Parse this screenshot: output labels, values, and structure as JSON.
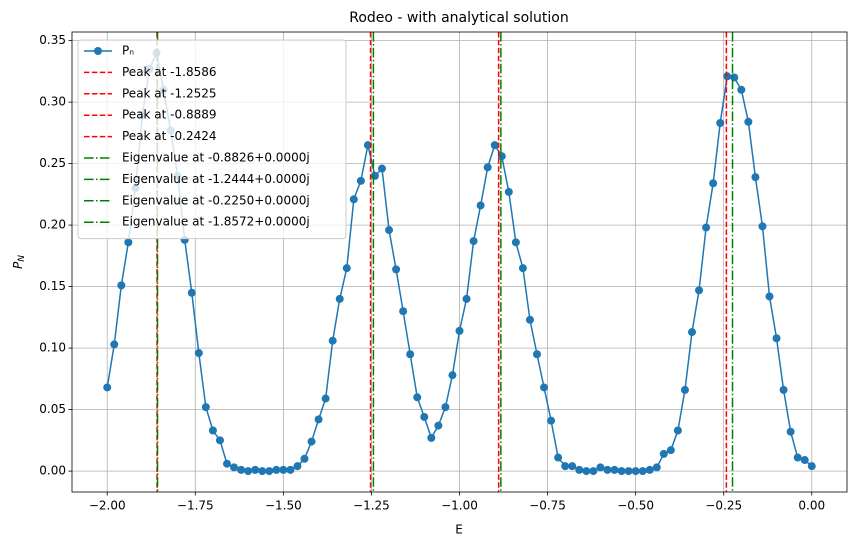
{
  "chart_data": {
    "type": "line",
    "title": "Rodeo - with analytical solution",
    "xlabel": "E",
    "ylabel": {
      "base": "P",
      "subscript": "N"
    },
    "xlim": [
      -2.1,
      0.1
    ],
    "ylim": [
      -0.017,
      0.357
    ],
    "xticks": [
      {
        "value": -2,
        "label": "−2.00"
      },
      {
        "value": -1.75,
        "label": "−1.75"
      },
      {
        "value": -1.5,
        "label": "−1.50"
      },
      {
        "value": -1.25,
        "label": "−1.25"
      },
      {
        "value": -1,
        "label": "−1.00"
      },
      {
        "value": -0.75,
        "label": "−0.75"
      },
      {
        "value": -0.5,
        "label": "−0.50"
      },
      {
        "value": -0.25,
        "label": "−0.25"
      },
      {
        "value": 0,
        "label": "0.00"
      }
    ],
    "yticks": [
      {
        "value": 0,
        "label": "0.00"
      },
      {
        "value": 0.05,
        "label": "0.05"
      },
      {
        "value": 0.1,
        "label": "0.10"
      },
      {
        "value": 0.15,
        "label": "0.15"
      },
      {
        "value": 0.2,
        "label": "0.20"
      },
      {
        "value": 0.25,
        "label": "0.25"
      },
      {
        "value": 0.3,
        "label": "0.30"
      },
      {
        "value": 0.35,
        "label": "0.35"
      }
    ],
    "grid": true,
    "legend": "upper left",
    "x": [
      -2.0,
      -1.98,
      -1.96,
      -1.94,
      -1.92,
      -1.9,
      -1.88,
      -1.86,
      -1.84,
      -1.82,
      -1.8,
      -1.78,
      -1.76,
      -1.74,
      -1.72,
      -1.7,
      -1.68,
      -1.66,
      -1.64,
      -1.62,
      -1.6,
      -1.58,
      -1.56,
      -1.54,
      -1.52,
      -1.5,
      -1.48,
      -1.46,
      -1.44,
      -1.42,
      -1.4,
      -1.38,
      -1.36,
      -1.34,
      -1.32,
      -1.3,
      -1.28,
      -1.26,
      -1.24,
      -1.22,
      -1.2,
      -1.18,
      -1.16,
      -1.14,
      -1.12,
      -1.1,
      -1.08,
      -1.06,
      -1.04,
      -1.02,
      -1.0,
      -0.98,
      -0.96,
      -0.94,
      -0.92,
      -0.9,
      -0.88,
      -0.86,
      -0.84,
      -0.82,
      -0.8,
      -0.78,
      -0.76,
      -0.74,
      -0.72,
      -0.7,
      -0.68,
      -0.66,
      -0.64,
      -0.62,
      -0.6,
      -0.58,
      -0.56,
      -0.54,
      -0.52,
      -0.5,
      -0.48,
      -0.46,
      -0.44,
      -0.42,
      -0.4,
      -0.38,
      -0.36,
      -0.34,
      -0.32,
      -0.3,
      -0.28,
      -0.26,
      -0.24,
      -0.22,
      -0.2,
      -0.18,
      -0.16,
      -0.14,
      -0.12,
      -0.1,
      -0.08,
      -0.06,
      -0.04,
      -0.02,
      0.0
    ],
    "series": [
      {
        "name": "Pₙ",
        "color": "#1f77b4",
        "marker": "o",
        "values": [
          0.068,
          0.103,
          0.151,
          0.186,
          0.23,
          0.29,
          0.327,
          0.34,
          0.31,
          0.277,
          0.24,
          0.188,
          0.145,
          0.096,
          0.052,
          0.033,
          0.025,
          0.006,
          0.003,
          0.001,
          0.0,
          0.001,
          0.0,
          0.0,
          0.001,
          0.001,
          0.001,
          0.004,
          0.01,
          0.024,
          0.042,
          0.059,
          0.106,
          0.14,
          0.165,
          0.221,
          0.236,
          0.265,
          0.24,
          0.246,
          0.196,
          0.164,
          0.13,
          0.095,
          0.06,
          0.044,
          0.027,
          0.037,
          0.052,
          0.078,
          0.114,
          0.14,
          0.187,
          0.216,
          0.247,
          0.265,
          0.256,
          0.227,
          0.186,
          0.165,
          0.123,
          0.095,
          0.068,
          0.041,
          0.011,
          0.004,
          0.004,
          0.001,
          0.0,
          0.0,
          0.003,
          0.001,
          0.001,
          0.0,
          0.0,
          0.0,
          0.0,
          0.001,
          0.003,
          0.014,
          0.017,
          0.033,
          0.066,
          0.113,
          0.147,
          0.198,
          0.234,
          0.283,
          0.321,
          0.32,
          0.31,
          0.284,
          0.239,
          0.199,
          0.142,
          0.108,
          0.066,
          0.032,
          0.011,
          0.009,
          0.004
        ]
      }
    ],
    "vlines": [
      {
        "name": "Peak at -1.8586",
        "x": -1.8586,
        "color": "#ff0000",
        "style": "dashed"
      },
      {
        "name": "Peak at -1.2525",
        "x": -1.2525,
        "color": "#ff0000",
        "style": "dashed"
      },
      {
        "name": "Peak at -0.8889",
        "x": -0.8889,
        "color": "#ff0000",
        "style": "dashed"
      },
      {
        "name": "Peak at -0.2424",
        "x": -0.2424,
        "color": "#ff0000",
        "style": "dashed"
      },
      {
        "name": "Eigenvalue at -0.8826+0.0000j",
        "x": -0.8826,
        "color": "#008000",
        "style": "dashdot"
      },
      {
        "name": "Eigenvalue at -1.2444+0.0000j",
        "x": -1.2444,
        "color": "#008000",
        "style": "dashdot"
      },
      {
        "name": "Eigenvalue at -0.2250+0.0000j",
        "x": -0.225,
        "color": "#008000",
        "style": "dashdot"
      },
      {
        "name": "Eigenvalue at -1.8572+0.0000j",
        "x": -1.8572,
        "color": "#008000",
        "style": "dashdot"
      }
    ]
  }
}
